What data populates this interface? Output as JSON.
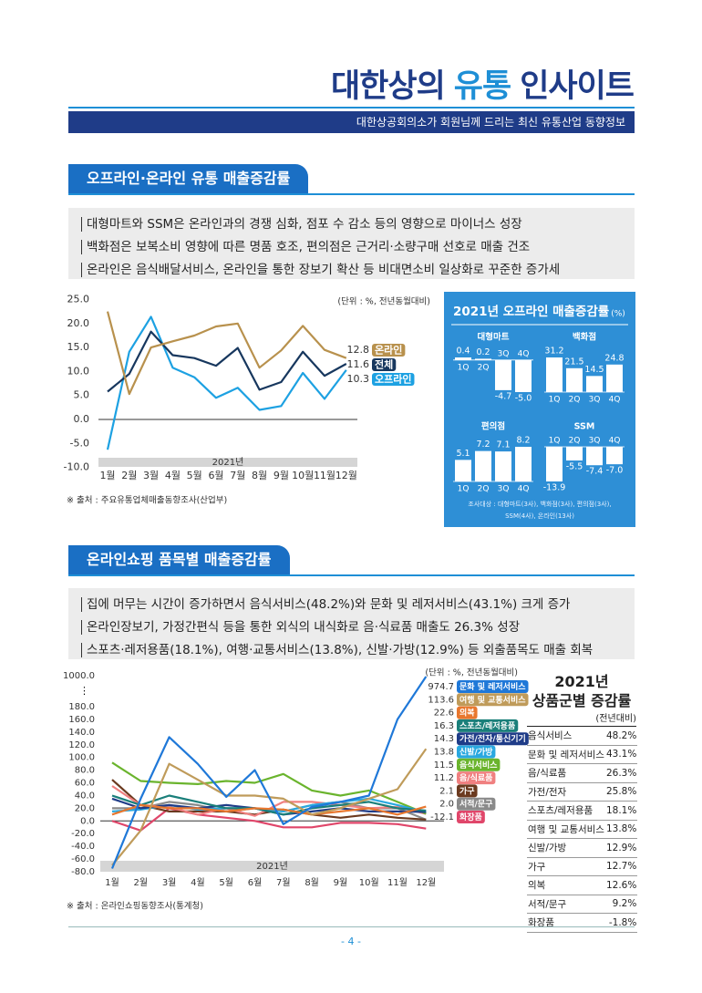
{
  "header": {
    "title": [
      "대한상의",
      "유통",
      "인사이트"
    ],
    "subtitle": "대한상공회의소가 회원님께 드리는 최신 유통산업 동향정보"
  },
  "sections": [
    {
      "title": "오프라인·온라인 유통 매출증감률",
      "bullets": [
        "대형마트와 SSM은 온라인과의 경쟁 심화, 점포 수 감소 등의 영향으로 마이너스 성장",
        "백화점은 보복소비 영향에 따른 명품 호조, 편의점은 근거리·소량구매 선호로 매출 건조",
        "온라인은 음식배달서비스, 온라인을 통한 장보기 확산 등 비대면소비 일상화로 꾸준한 증가세"
      ]
    },
    {
      "title": "온라인쇼핑 품목별 매출증감률",
      "bullets": [
        "집에 머무는 시간이 증가하면서 음식서비스(48.2%)와 문화 및 레저서비스(43.1%) 크게 증가",
        "온라인장보기, 가정간편식 등을 통한 외식의 내식화로 음·식료품 매출도 26.3% 성장",
        "스포츠·레저용품(18.1%), 여행·교통서비스(13.8%), 신발·가방(12.9%) 등 외출품목도 매출 회복"
      ]
    }
  ],
  "chart_data": [
    {
      "type": "line",
      "unit_note": "(단위 : %, 전년동월대비)",
      "year_label": "2021년",
      "source": "※ 출처 : 주요유통업체매출동향조사(산업부)",
      "categories": [
        "1월",
        "2월",
        "3월",
        "4월",
        "5월",
        "6월",
        "7월",
        "8월",
        "9월",
        "10월",
        "11월",
        "12월"
      ],
      "series": [
        {
          "name": "온라인",
          "color": "#b8914d",
          "values": [
            22.5,
            5.3,
            15.0,
            16.3,
            17.5,
            19.4,
            20.0,
            10.8,
            14.4,
            19.5,
            14.5,
            12.8
          ]
        },
        {
          "name": "전체",
          "color": "#17375e",
          "values": [
            5.8,
            9.5,
            18.3,
            13.4,
            12.8,
            11.2,
            14.9,
            6.2,
            7.8,
            14.1,
            9.1,
            11.6
          ]
        },
        {
          "name": "오프라인",
          "color": "#1da1e2",
          "values": [
            -6.3,
            14.1,
            21.4,
            10.8,
            8.8,
            4.5,
            6.6,
            2.0,
            2.8,
            9.7,
            4.3,
            10.3
          ]
        }
      ],
      "ylim": [
        -10,
        25
      ],
      "yticks": [
        {
          "value": -10,
          "label": "-10.0"
        },
        {
          "value": -5,
          "label": "-5.0"
        },
        {
          "value": 0,
          "label": "0.0"
        },
        {
          "value": 5,
          "label": "5.0"
        },
        {
          "value": 10,
          "label": "10.0"
        },
        {
          "value": 15,
          "label": "15.0"
        },
        {
          "value": 20,
          "label": "20.0"
        },
        {
          "value": 25,
          "label": "25.0"
        }
      ],
      "grid": false
    },
    {
      "type": "bar",
      "title": "2021년 오프라인 매출증감률",
      "unit": "(%)",
      "categories": [
        "1Q",
        "2Q",
        "3Q",
        "4Q"
      ],
      "series": [
        {
          "name": "대형마트",
          "color": "#ffffff",
          "values": [
            0.4,
            0.2,
            -4.7,
            -5.0
          ],
          "value_labels": [
            "0.4",
            "0.2",
            "-4.7",
            "-5.0"
          ]
        },
        {
          "name": "백화점",
          "color": "#ffffff",
          "values": [
            31.2,
            21.5,
            14.5,
            24.8
          ]
        },
        {
          "name": "편의점",
          "color": "#ffffff",
          "values": [
            5.1,
            7.2,
            7.1,
            8.2
          ]
        },
        {
          "name": "SSM",
          "color": "#ffffff",
          "values": [
            -13.9,
            -5.5,
            -7.4,
            -7.0
          ],
          "value_labels": [
            "-13.9",
            "-5.5",
            "-7.4",
            "-7.0"
          ]
        }
      ],
      "note": [
        "조사대상 : 대형마트(3사), 백화점(3사), 편의점(3사),",
        "SSM(4사), 온라인(13사)"
      ]
    },
    {
      "type": "line",
      "unit_note": "(단위 : %, 전년동월대비)",
      "year_label": "2021년",
      "source": "※ 출처 : 온라인쇼핑동향조사(통계청)",
      "categories": [
        "1월",
        "2월",
        "3월",
        "4월",
        "5월",
        "6월",
        "7월",
        "8월",
        "9월",
        "10월",
        "11월",
        "12월"
      ],
      "series": [
        {
          "name": "문화 및 레저서비스",
          "color": "#1f78d8",
          "values": [
            -75,
            35,
            132,
            90,
            38,
            80,
            -5,
            22,
            30,
            40,
            160,
            974.7
          ]
        },
        {
          "name": "여행 및 교통서비스",
          "color": "#bf9b5a",
          "values": [
            -70,
            -15,
            90,
            65,
            40,
            40,
            35,
            10,
            20,
            35,
            50,
            113.6
          ]
        },
        {
          "name": "의복",
          "color": "#e8772e",
          "values": [
            10,
            25,
            20,
            20,
            15,
            20,
            18,
            10,
            15,
            20,
            10,
            22.6
          ]
        },
        {
          "name": "스포츠/레저용품",
          "color": "#1a7f7a",
          "values": [
            40,
            25,
            40,
            30,
            20,
            20,
            10,
            20,
            25,
            30,
            20,
            16.3
          ]
        },
        {
          "name": "가전/전자/통신기기",
          "color": "#1f3c88",
          "values": [
            35,
            20,
            25,
            20,
            25,
            20,
            10,
            15,
            20,
            15,
            15,
            14.3
          ]
        },
        {
          "name": "신발/가방",
          "color": "#29a8e0",
          "values": [
            15,
            18,
            25,
            18,
            20,
            20,
            15,
            25,
            30,
            35,
            25,
            13.8
          ]
        },
        {
          "name": "음식서비스",
          "color": "#6ab42d",
          "values": [
            92,
            63,
            60,
            58,
            63,
            60,
            74,
            48,
            40,
            48,
            30,
            11.5
          ]
        },
        {
          "name": "음/식료품",
          "color": "#f08080",
          "values": [
            55,
            25,
            22,
            10,
            20,
            8,
            30,
            30,
            25,
            20,
            22,
            11.2
          ]
        },
        {
          "name": "가구",
          "color": "#6b3a1f",
          "values": [
            65,
            25,
            15,
            15,
            15,
            10,
            18,
            10,
            5,
            10,
            5,
            2.1
          ]
        },
        {
          "name": "서적/문구",
          "color": "#8a8a8a",
          "values": [
            20,
            20,
            30,
            25,
            15,
            20,
            15,
            25,
            30,
            20,
            20,
            2.0
          ],
          "value_labels": [
            null,
            null,
            null,
            null,
            null,
            null,
            null,
            null,
            null,
            null,
            null,
            "2.0"
          ]
        },
        {
          "name": "화장품",
          "color": "#e0466a",
          "values": [
            0,
            -15,
            20,
            10,
            5,
            0,
            -10,
            -10,
            -3,
            -3,
            -5,
            -12.1
          ]
        }
      ],
      "ylim": [
        -80,
        1000
      ],
      "axis_break_from": 180,
      "yticks": [
        {
          "value": 1000,
          "label": "1000.0"
        },
        {
          "value": 180,
          "label": "180.0"
        },
        {
          "value": 160,
          "label": "160.0"
        },
        {
          "value": 140,
          "label": "140.0"
        },
        {
          "value": 120,
          "label": "120.0"
        },
        {
          "value": 100,
          "label": "100.0"
        },
        {
          "value": 80,
          "label": "80.0"
        },
        {
          "value": 60,
          "label": "60.0"
        },
        {
          "value": 40,
          "label": "40.0"
        },
        {
          "value": 20,
          "label": "20.0"
        },
        {
          "value": 0,
          "label": "0.0"
        },
        {
          "value": -20,
          "label": "-20.0"
        },
        {
          "value": -40,
          "label": "-40.0"
        },
        {
          "value": -60,
          "label": "-60.0"
        },
        {
          "value": -80,
          "label": "-80.0"
        }
      ],
      "grid": false
    }
  ],
  "table": {
    "title": "2021년",
    "subtitle": "상품군별 증감률",
    "unit": "(전년대비)",
    "rows": [
      [
        "음식서비스",
        "48.2%"
      ],
      [
        "문화 및 레저서비스",
        "43.1%"
      ],
      [
        "음/식료품",
        "26.3%"
      ],
      [
        "가전/전자",
        "25.8%"
      ],
      [
        "스포츠/레저용품",
        "18.1%"
      ],
      [
        "여행 및 교통서비스",
        "13.8%"
      ],
      [
        "신발/가방",
        "12.9%"
      ],
      [
        "가구",
        "12.7%"
      ],
      [
        "의복",
        "12.6%"
      ],
      [
        "서적/문구",
        "9.2%"
      ],
      [
        "화장품",
        "-1.8%"
      ]
    ]
  },
  "page_number": "- 4 -"
}
